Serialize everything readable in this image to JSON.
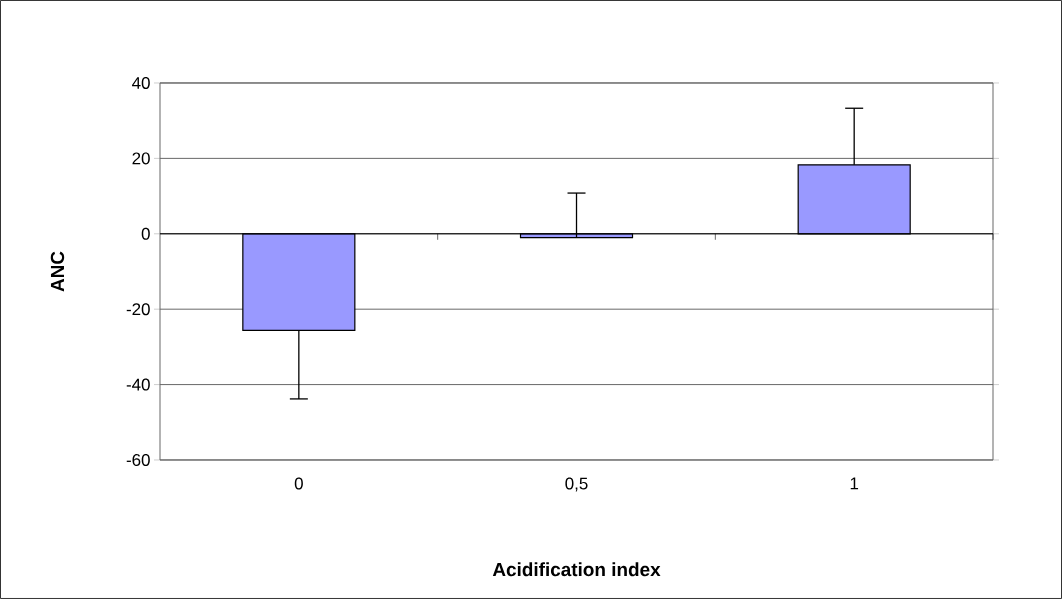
{
  "chart_data": {
    "type": "bar",
    "xlabel": "Acidification index",
    "ylabel": "ANC",
    "categories": [
      "0",
      "0,5",
      "1"
    ],
    "values": [
      -25.6,
      -1.0,
      18.3
    ],
    "errors": [
      [
        -43.8,
        -25.6
      ],
      [
        -1.0,
        10.8
      ],
      [
        18.3,
        33.3
      ]
    ],
    "color": "#9999ff",
    "ylim": [
      -60,
      40
    ],
    "yticks": [
      -60,
      -40,
      -20,
      0,
      20,
      40
    ],
    "grid": "y"
  }
}
